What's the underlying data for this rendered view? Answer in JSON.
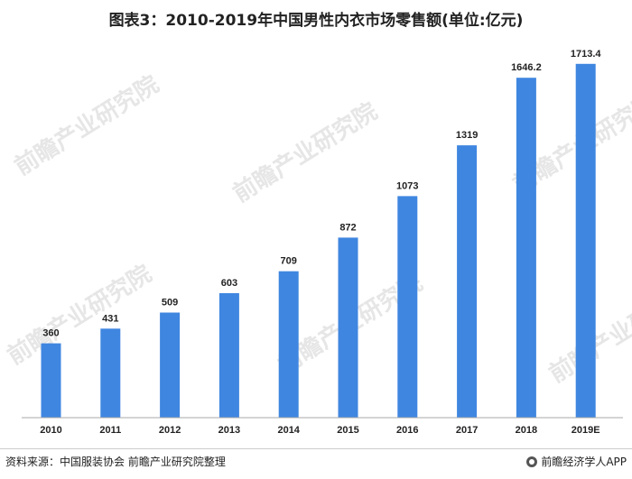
{
  "chart_data": {
    "type": "bar",
    "title": "图表3：2010-2019年中国男性内衣市场零售额(单位:亿元)",
    "categories": [
      "2010",
      "2011",
      "2012",
      "2013",
      "2014",
      "2015",
      "2016",
      "2017",
      "2018",
      "2019E"
    ],
    "values": [
      360,
      431,
      509,
      603,
      709,
      872,
      1073,
      1319,
      1646.2,
      1713.4
    ],
    "value_labels": [
      "360",
      "431",
      "509",
      "603",
      "709",
      "872",
      "1073",
      "1319",
      "1646.2",
      "1713.4"
    ],
    "ylim": [
      0,
      1800
    ],
    "grid": false,
    "legend": "none",
    "bar_color": "#3f86e0"
  },
  "watermark": "前瞻产业研究院",
  "footer": {
    "source": "资料来源：中国服装协会 前瞻产业研究院整理",
    "brand": "前瞻经济学人APP"
  }
}
